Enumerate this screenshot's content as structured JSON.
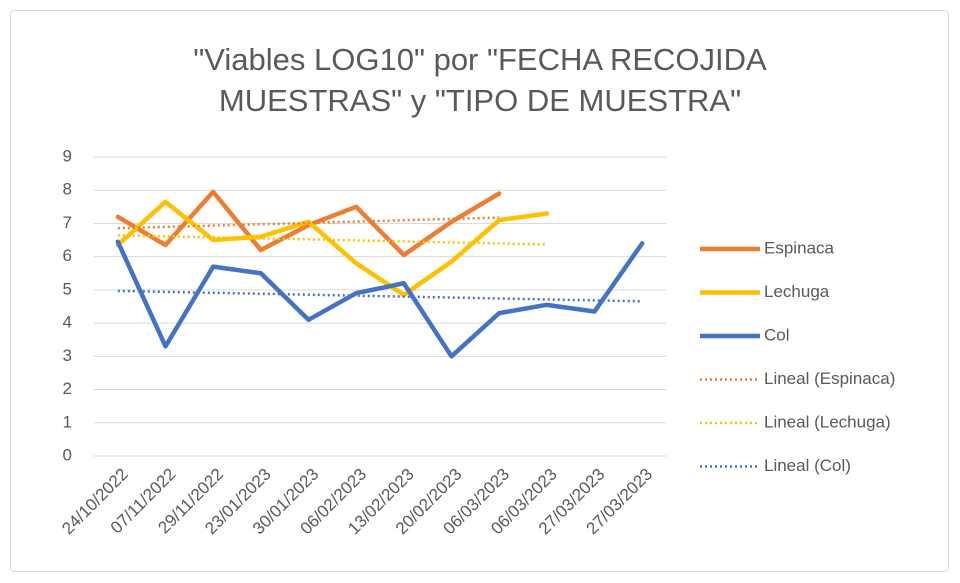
{
  "chart_data": {
    "type": "line",
    "title": [
      "\"Viables LOG10\" por \"FECHA RECOJIDA",
      "MUESTRAS\" y \"TIPO DE MUESTRA\""
    ],
    "categories": [
      "24/10/2022",
      "07/11/2022",
      "29/11/2022",
      "23/01/2023",
      "30/01/2023",
      "06/02/2023",
      "13/02/2023",
      "20/02/2023",
      "06/03/2023",
      "06/03/2023",
      "27/03/2023",
      "27/03/2023"
    ],
    "series": [
      {
        "name": "Espinaca",
        "color": "#ED7D31",
        "values": [
          7.2,
          6.35,
          7.95,
          6.2,
          6.95,
          7.5,
          6.05,
          7.05,
          7.9,
          null,
          null,
          null
        ],
        "trendline": {
          "type": "linear",
          "name": "Lineal (Espinaca)"
        }
      },
      {
        "name": "Lechuga",
        "color": "#FFC000",
        "values": [
          6.35,
          7.65,
          6.5,
          6.6,
          7.05,
          5.8,
          4.85,
          5.85,
          7.1,
          7.3,
          null,
          null
        ],
        "trendline": {
          "type": "linear",
          "name": "Lineal (Lechuga)"
        }
      },
      {
        "name": "Col",
        "color": "#4472C4",
        "values": [
          6.45,
          3.3,
          5.7,
          5.5,
          4.1,
          4.9,
          5.2,
          3.0,
          4.3,
          4.55,
          4.35,
          6.4
        ],
        "trendline": {
          "type": "linear",
          "name": "Lineal (Col)"
        }
      }
    ],
    "ylim": [
      0,
      9
    ],
    "yticks": [
      0,
      1,
      2,
      3,
      4,
      5,
      6,
      7,
      8,
      9
    ],
    "grid": true,
    "legend": "right"
  }
}
